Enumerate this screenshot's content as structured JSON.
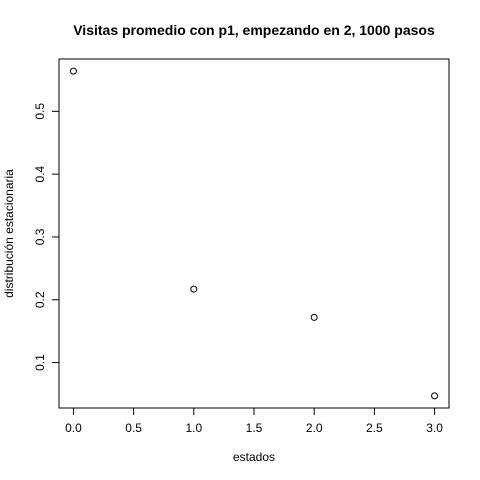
{
  "chart_data": {
    "type": "scatter",
    "title": "Visitas promedio con p1, empezando en 2, 1000 pasos",
    "xlabel": "estados",
    "ylabel": "distribución estacionaria",
    "x": [
      0,
      1,
      2,
      3
    ],
    "y": [
      0.564,
      0.217,
      0.172,
      0.047
    ],
    "xlim": [
      -0.12,
      3.12
    ],
    "ylim": [
      0.0277,
      0.5833
    ],
    "xticks": [
      0,
      0.5,
      1,
      1.5,
      2,
      2.5,
      3
    ],
    "xtick_labels": [
      "0.0",
      "0.5",
      "1.0",
      "1.5",
      "2.0",
      "2.5",
      "3.0"
    ],
    "yticks": [
      0.1,
      0.2,
      0.3,
      0.4,
      0.5
    ],
    "ytick_labels": [
      "0.1",
      "0.2",
      "0.3",
      "0.4",
      "0.5"
    ],
    "marker": "open-circle",
    "grid": false,
    "legend": "none",
    "color": "#000000"
  }
}
